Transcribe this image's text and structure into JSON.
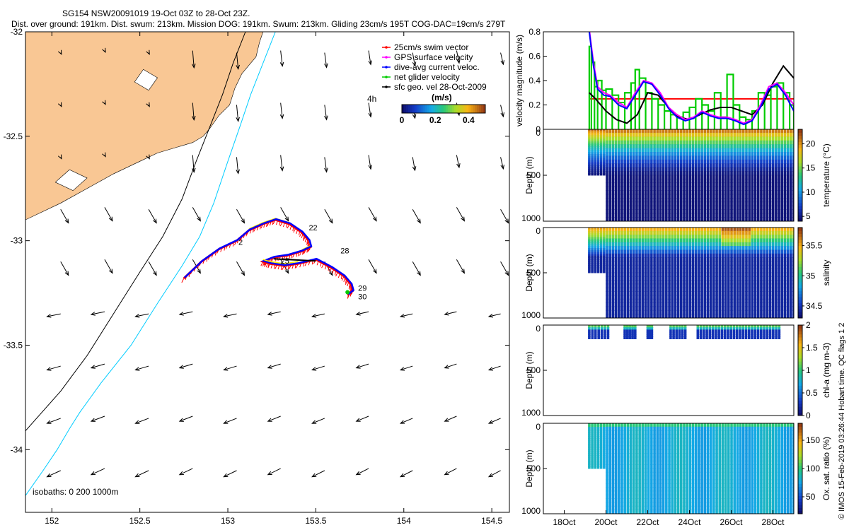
{
  "header": {
    "line1": "SG154 NSW20091019 19-Oct 03Z to 28-Oct 23Z.",
    "line2": "Dist. over ground: 191km. Dist. swum: 213km. Mission DOG: 191km. Swum: 213km. Gliding 23cm/s 195T COG-DAC=19cm/s 279T"
  },
  "footer_note": "© IMOS 15-Feb-2019 03:26:44 Hobart time. QC flags 1  2",
  "colors": {
    "land": "#f9c794",
    "swim": "#ff0000",
    "gps": "#ff00ff",
    "dac": "#0000ff",
    "net": "#00cc00",
    "sfc": "#000000",
    "isobath200": "#00ccff",
    "isobath1000": "#000000",
    "track_yellow": "#ffee00"
  },
  "chart_data": [
    {
      "type": "map",
      "name": "track-map",
      "xlim": [
        151.85,
        154.6
      ],
      "ylim": [
        -34.3,
        -32
      ],
      "x_ticks": [
        152,
        152.5,
        153,
        153.5,
        154,
        154.5
      ],
      "x_tick_labels": [
        "152",
        "152.5",
        "153",
        "153.5",
        "154",
        "154.5"
      ],
      "y_ticks": [
        -32,
        -32.5,
        -33,
        -33.5,
        -34
      ],
      "y_tick_labels": [
        "-32",
        "-32.5",
        "-33",
        "-33.5",
        "-34"
      ],
      "legend": {
        "position": "top-right",
        "entries": [
          {
            "label": "25cm/s swim vector",
            "color": "#ff0000"
          },
          {
            "label": "GPS surface velocity",
            "color": "#ff00ff"
          },
          {
            "label": "dive-avg current veloc.",
            "color": "#0000ff"
          },
          {
            "label": "net glider velocity",
            "color": "#00cc00"
          },
          {
            "label": "sfc geo. vel 28-Oct-2009",
            "color": "#000000"
          }
        ]
      },
      "colorbar": {
        "title": "(m/s)",
        "range": [
          0,
          0.5
        ],
        "ticks": [
          0,
          0.2,
          0.4
        ],
        "tick_labels": [
          "0",
          "0.2",
          "0.4"
        ]
      },
      "h_label": "4h",
      "isobath_label": "isobaths: 0   200  1000m",
      "day_labels": [
        {
          "text": "22",
          "lon": 153.46,
          "lat": -32.95
        },
        {
          "text": "28",
          "lon": 153.64,
          "lat": -33.06
        },
        {
          "text": "25",
          "lon": 153.3,
          "lat": -33.11
        },
        {
          "text": "2",
          "lon": 153.06,
          "lat": -33.02
        },
        {
          "text": "29",
          "lon": 153.74,
          "lat": -33.24
        },
        {
          "text": "30",
          "lon": 153.74,
          "lat": -33.28
        }
      ],
      "track": [
        [
          152.75,
          -33.18
        ],
        [
          152.85,
          -33.1
        ],
        [
          152.95,
          -33.04
        ],
        [
          153.05,
          -33.0
        ],
        [
          153.12,
          -32.95
        ],
        [
          153.2,
          -32.92
        ],
        [
          153.27,
          -32.9
        ],
        [
          153.35,
          -32.92
        ],
        [
          153.42,
          -32.96
        ],
        [
          153.46,
          -33.0
        ],
        [
          153.47,
          -33.03
        ],
        [
          153.42,
          -33.05
        ],
        [
          153.34,
          -33.07
        ],
        [
          153.26,
          -33.08
        ],
        [
          153.2,
          -33.1
        ],
        [
          153.24,
          -33.11
        ],
        [
          153.32,
          -33.12
        ],
        [
          153.4,
          -33.11
        ],
        [
          153.5,
          -33.09
        ],
        [
          153.59,
          -33.13
        ],
        [
          153.66,
          -33.17
        ],
        [
          153.7,
          -33.21
        ],
        [
          153.71,
          -33.24
        ],
        [
          153.68,
          -33.26
        ]
      ],
      "coast": [
        [
          154.0,
          -32.0
        ],
        [
          153.2,
          -32.0
        ],
        [
          153.18,
          -32.05
        ],
        [
          153.16,
          -32.12
        ],
        [
          153.12,
          -32.16
        ],
        [
          153.08,
          -32.2
        ],
        [
          153.04,
          -32.27
        ],
        [
          153.01,
          -32.35
        ],
        [
          152.95,
          -32.4
        ],
        [
          152.9,
          -32.46
        ],
        [
          152.86,
          -32.5
        ],
        [
          152.8,
          -32.53
        ],
        [
          152.72,
          -32.55
        ],
        [
          152.6,
          -32.58
        ],
        [
          152.5,
          -32.62
        ],
        [
          152.35,
          -32.68
        ],
        [
          152.2,
          -32.75
        ],
        [
          152.05,
          -32.82
        ],
        [
          151.85,
          -32.9
        ],
        [
          151.85,
          -32.0
        ]
      ],
      "isobath_200m": [
        [
          153.27,
          -32.0
        ],
        [
          153.2,
          -32.15
        ],
        [
          153.13,
          -32.3
        ],
        [
          153.07,
          -32.45
        ],
        [
          153.0,
          -32.62
        ],
        [
          152.92,
          -32.82
        ],
        [
          152.84,
          -32.98
        ],
        [
          152.74,
          -33.12
        ],
        [
          152.6,
          -33.3
        ],
        [
          152.45,
          -33.5
        ],
        [
          152.28,
          -33.68
        ],
        [
          152.16,
          -33.82
        ],
        [
          152.1,
          -33.9
        ],
        [
          152.03,
          -34.0
        ],
        [
          151.95,
          -34.1
        ],
        [
          151.85,
          -34.22
        ]
      ],
      "isobath_1000m": [
        [
          153.1,
          -32.0
        ],
        [
          153.03,
          -32.15
        ],
        [
          152.97,
          -32.3
        ],
        [
          152.9,
          -32.45
        ],
        [
          152.82,
          -32.62
        ],
        [
          152.74,
          -32.8
        ],
        [
          152.63,
          -32.98
        ],
        [
          152.5,
          -33.15
        ],
        [
          152.35,
          -33.35
        ],
        [
          152.2,
          -33.55
        ],
        [
          152.05,
          -33.72
        ],
        [
          151.85,
          -33.91
        ]
      ]
    },
    {
      "type": "line",
      "name": "velocity-timeseries",
      "ylabel": "velocity magnitude (m/s)",
      "xlim": [
        17,
        29
      ],
      "ylim": [
        0,
        0.8
      ],
      "y_ticks": [
        0,
        0.2,
        0.4,
        0.6,
        0.8
      ],
      "y_tick_labels": [
        "0",
        "0.2",
        "0.4",
        "0.6",
        "0.8"
      ],
      "series": [
        {
          "key": "swim",
          "color": "#ff0000",
          "x": [
            19.2,
            29.0
          ],
          "y": [
            0.25,
            0.25
          ]
        },
        {
          "key": "net",
          "color": "#00cc00",
          "step": true,
          "x": [
            19.2,
            19.3,
            19.45,
            19.6,
            19.8,
            20.0,
            20.3,
            20.6,
            20.9,
            21.2,
            21.4,
            21.6,
            21.9,
            22.2,
            22.5,
            22.8,
            23.1,
            23.4,
            23.7,
            24.0,
            24.3,
            24.6,
            24.9,
            25.2,
            25.5,
            25.8,
            26.1,
            26.4,
            26.7,
            27.0,
            27.3,
            27.6,
            27.9,
            28.2,
            28.5,
            28.8,
            29.0
          ],
          "y": [
            0.68,
            0.55,
            0.35,
            0.4,
            0.32,
            0.33,
            0.28,
            0.22,
            0.3,
            0.38,
            0.49,
            0.42,
            0.3,
            0.25,
            0.2,
            0.15,
            0.12,
            0.1,
            0.14,
            0.18,
            0.25,
            0.2,
            0.15,
            0.3,
            0.1,
            0.45,
            0.2,
            0.1,
            0.08,
            0.15,
            0.3,
            0.28,
            0.35,
            0.38,
            0.3,
            0.2,
            0.12
          ]
        },
        {
          "key": "sfc",
          "color": "#000000",
          "x": [
            19.2,
            19.5,
            20.0,
            20.5,
            21.0,
            21.5,
            22.0,
            22.5,
            23.0,
            23.5,
            24.0,
            24.5,
            25.0,
            25.5,
            26.0,
            26.5,
            27.0,
            27.5,
            28.0,
            28.5,
            29.0
          ],
          "y": [
            0.3,
            0.25,
            0.15,
            0.08,
            0.05,
            0.12,
            0.3,
            0.28,
            0.18,
            0.1,
            0.08,
            0.12,
            0.16,
            0.18,
            0.18,
            0.15,
            0.12,
            0.2,
            0.38,
            0.52,
            0.42
          ]
        },
        {
          "key": "gps",
          "color": "#ff00ff",
          "x": [
            19.2,
            19.4,
            19.6,
            19.9,
            20.2,
            20.6,
            21.0,
            21.4,
            21.8,
            22.2,
            22.6,
            23.0,
            23.4,
            23.8,
            24.2,
            24.6,
            25.0,
            25.4,
            25.8,
            26.2,
            26.6,
            27.0,
            27.4,
            27.8,
            28.2,
            28.6,
            29.0
          ],
          "y": [
            0.82,
            0.55,
            0.35,
            0.3,
            0.28,
            0.22,
            0.18,
            0.3,
            0.4,
            0.38,
            0.3,
            0.18,
            0.12,
            0.08,
            0.1,
            0.15,
            0.12,
            0.1,
            0.1,
            0.08,
            0.05,
            0.08,
            0.2,
            0.35,
            0.38,
            0.3,
            0.2
          ]
        },
        {
          "key": "dac",
          "color": "#0000ff",
          "x": [
            19.2,
            19.4,
            19.6,
            19.9,
            20.2,
            20.6,
            21.0,
            21.4,
            21.8,
            22.2,
            22.6,
            23.0,
            23.4,
            23.8,
            24.2,
            24.6,
            25.0,
            25.4,
            25.8,
            26.2,
            26.6,
            27.0,
            27.4,
            27.8,
            28.2,
            28.6,
            29.0
          ],
          "y": [
            0.8,
            0.52,
            0.33,
            0.28,
            0.27,
            0.2,
            0.17,
            0.28,
            0.39,
            0.37,
            0.28,
            0.17,
            0.1,
            0.07,
            0.09,
            0.14,
            0.11,
            0.09,
            0.09,
            0.07,
            0.04,
            0.07,
            0.18,
            0.33,
            0.37,
            0.28,
            0.15
          ]
        }
      ]
    },
    {
      "type": "heatmap",
      "name": "temperature-section",
      "ylabel": "Depth (m)",
      "colorbar_label": "temperature (°C)",
      "xlim": [
        17,
        29
      ],
      "ylim": [
        1000,
        0
      ],
      "y_ticks": [
        0,
        500,
        1000
      ],
      "y_tick_labels": [
        "0",
        "500",
        "1000"
      ],
      "c_range": [
        4,
        23
      ],
      "c_ticks": [
        5,
        10,
        15,
        20
      ],
      "c_tick_labels": [
        "5",
        "10",
        "15",
        "20"
      ],
      "profiles": {
        "x_start": 19.2,
        "x_end": 29.0,
        "count": 70,
        "max_depth": 1000,
        "shallow_until": 20.0,
        "shallow_depth": 500
      },
      "surface_value": 22,
      "deep_value": 4.5
    },
    {
      "type": "heatmap",
      "name": "salinity-section",
      "ylabel": "Depth (m)",
      "colorbar_label": "salinity",
      "xlim": [
        17,
        29
      ],
      "ylim": [
        1000,
        0
      ],
      "y_ticks": [
        0,
        500,
        1000
      ],
      "y_tick_labels": [
        "0",
        "500",
        "1000"
      ],
      "c_range": [
        34.3,
        35.8
      ],
      "c_ticks": [
        34.5,
        35,
        35.5
      ],
      "c_tick_labels": [
        "34.5",
        "35",
        "35.5"
      ],
      "profiles": {
        "x_start": 19.2,
        "x_end": 29.0,
        "count": 70,
        "max_depth": 1000,
        "shallow_until": 20.0,
        "shallow_depth": 500
      },
      "surface_value": 35.6,
      "deep_value": 34.4
    },
    {
      "type": "heatmap",
      "name": "chl-section",
      "ylabel": "Depth (m)",
      "colorbar_label": "chl-a (mg m-3)",
      "xlim": [
        17,
        29
      ],
      "ylim": [
        1000,
        0
      ],
      "y_ticks": [
        0,
        500,
        1000
      ],
      "y_tick_labels": [
        "0",
        "500",
        "1000"
      ],
      "c_range": [
        0,
        2
      ],
      "c_ticks": [
        0,
        0.5,
        1,
        1.5,
        2
      ],
      "c_tick_labels": [
        "0",
        "0.5",
        "1",
        "1.5",
        "2"
      ],
      "segments": [
        [
          19.2,
          20.1
        ],
        [
          20.9,
          21.4
        ],
        [
          22.0,
          22.2
        ],
        [
          23.1,
          23.8
        ],
        [
          24.4,
          28.3
        ]
      ],
      "max_depth": 150
    },
    {
      "type": "heatmap",
      "name": "oxygen-section",
      "ylabel": "Depth (m)",
      "colorbar_label": "Ox. sat. ratio (%)",
      "xlim": [
        17,
        29
      ],
      "ylim": [
        1000,
        0
      ],
      "y_ticks": [
        0,
        500,
        1000
      ],
      "y_tick_labels": [
        "0",
        "500",
        "1000"
      ],
      "c_range": [
        20,
        180
      ],
      "c_ticks": [
        50,
        100,
        150
      ],
      "c_tick_labels": [
        "50",
        "100",
        "150"
      ],
      "x_ticks": [
        18,
        20,
        22,
        24,
        26,
        28
      ],
      "x_tick_labels": [
        "18Oct",
        "20Oct",
        "22Oct",
        "24Oct",
        "26Oct",
        "28Oct"
      ],
      "profiles": {
        "x_start": 19.2,
        "x_end": 29.0,
        "count": 70,
        "max_depth": 1000,
        "shallow_until": 20.0,
        "shallow_depth": 500
      },
      "surface_value": 100,
      "deep_value": 75
    }
  ]
}
